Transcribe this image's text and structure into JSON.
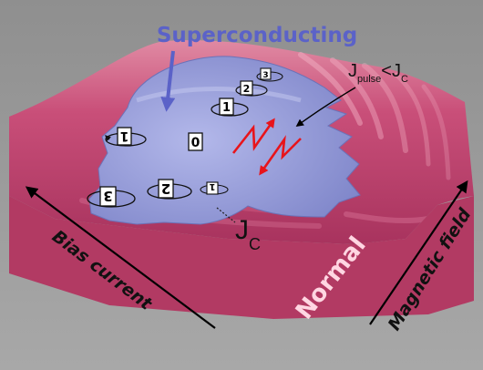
{
  "labels": {
    "superconducting": "Superconducting",
    "normal": "Normal",
    "bias_current": "Bias current",
    "magnetic_field": "Magnetic field",
    "jc_main": "J",
    "jc_sub": "C",
    "jpulse_main": "J",
    "jpulse_sub": "pulse",
    "jpulse_lt": "<J",
    "jpulse_c": "C"
  },
  "vortex_badges": {
    "b0": "0",
    "b1_left": "1",
    "b1_top": "1",
    "b2_top": "2",
    "b3_top": "3",
    "b1_small": "1",
    "b2_bottom": "2",
    "b3_left": "3"
  },
  "colors": {
    "background": "#9c9c9c",
    "normal_surface": "#c0426c",
    "superconducting_region": "#9a9fd6",
    "superconducting_label": "#5b62c8",
    "pulse_arrows": "#e8141b",
    "normal_label": "#ffd6e2"
  }
}
